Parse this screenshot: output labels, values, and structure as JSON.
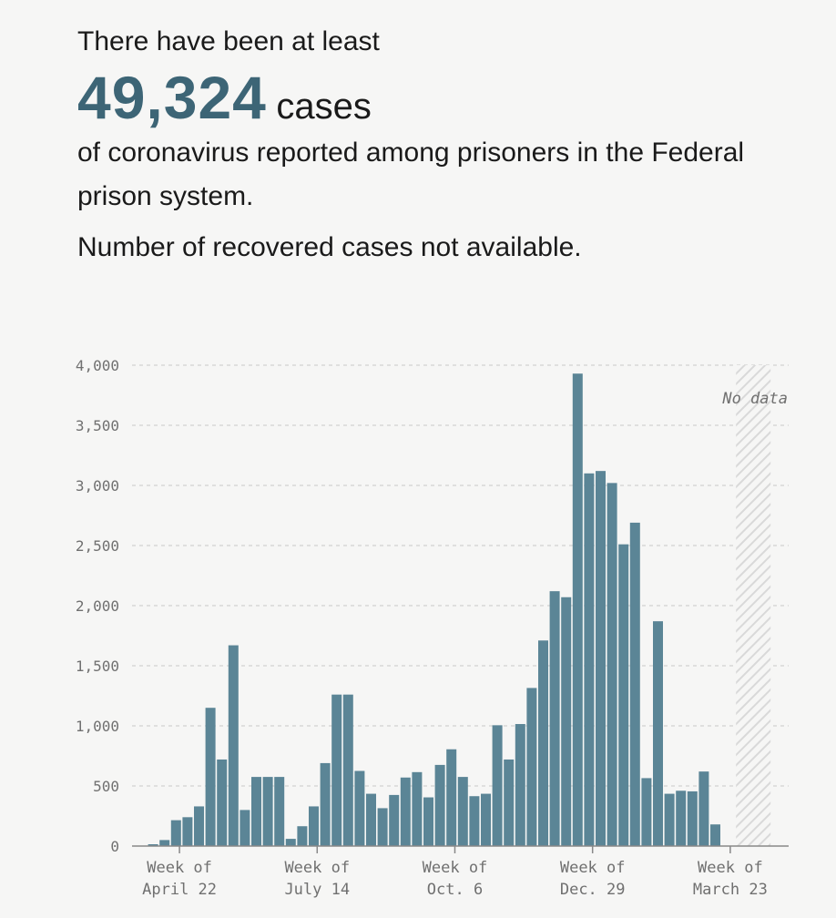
{
  "header": {
    "lead": "There have been at least",
    "count": "49,324",
    "count_unit": "cases",
    "description": "of coronavirus reported among prisoners in the Federal prison system.",
    "recovered_note": "Number of recovered cases not available."
  },
  "colors": {
    "bar": "#5b8596",
    "accent": "#3d6576",
    "grid": "#c8c8c8",
    "axis": "#888888"
  },
  "chart_data": {
    "type": "bar",
    "ylim": [
      0,
      4000
    ],
    "yticks": [
      0,
      500,
      1000,
      1500,
      2000,
      2500,
      3000,
      3500,
      4000
    ],
    "ytick_labels": [
      "0",
      "500",
      "1,000",
      "1,500",
      "2,000",
      "2,500",
      "3,000",
      "3,500",
      "4,000"
    ],
    "grid": true,
    "values": [
      0,
      15,
      50,
      215,
      240,
      330,
      1150,
      720,
      1670,
      300,
      575,
      575,
      575,
      60,
      165,
      330,
      690,
      1260,
      1260,
      625,
      435,
      315,
      425,
      570,
      615,
      405,
      675,
      805,
      575,
      415,
      435,
      1005,
      720,
      1015,
      1315,
      1710,
      2120,
      2070,
      3930,
      3100,
      3120,
      3020,
      2510,
      2690,
      565,
      1870,
      435,
      460,
      455,
      620,
      180
    ],
    "x_labels": [
      {
        "index": 3.3,
        "line1": "Week of",
        "line2": "April 22"
      },
      {
        "index": 15.3,
        "line1": "Week of",
        "line2": "July 14"
      },
      {
        "index": 27.3,
        "line1": "Week of",
        "line2": "Oct. 6"
      },
      {
        "index": 39.3,
        "line1": "Week of",
        "line2": "Dec. 29"
      },
      {
        "index": 51.3,
        "line1": "Week of",
        "line2": "March 23"
      }
    ],
    "no_data_label": "No data",
    "no_data_start_index": 52
  }
}
